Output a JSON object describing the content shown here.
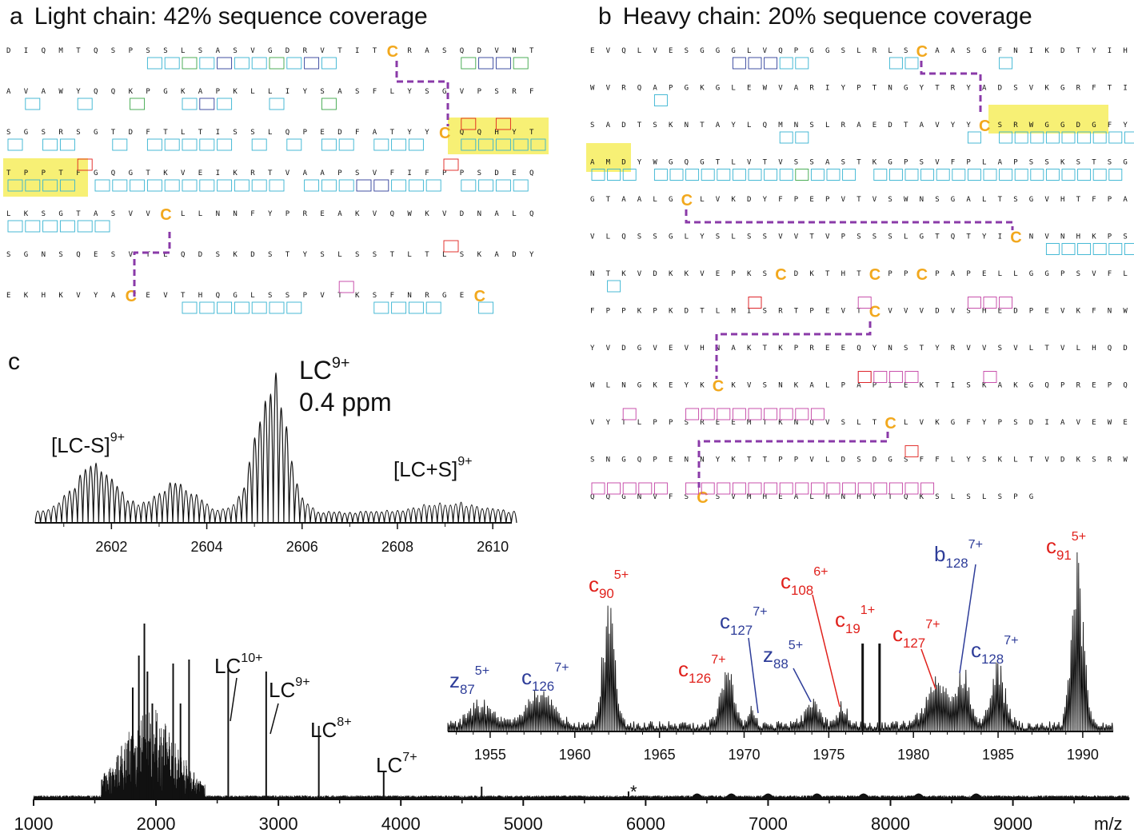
{
  "panel_a": {
    "letter": "a",
    "title": "Light chain: 42% sequence coverage",
    "rows": [
      "DIQMTQSPSSLSASVGDRVTITCRASQDVNT",
      "AVAWYQQKPGKAPKLLIYSASFLYSGVPSRF",
      "SGSRSGTDFTLTISSLQPEDFATYYCQQHYT",
      "TPPTFGQGTKVEIKRTVAAPSVFIFPPSDEQ",
      "LKSGTASVVCLLNNFYPREAKVQWKVDNALQ",
      "SGNSQESVTEQDSKDSTYSLSSTLTLSKADY",
      "EKHKVYACEVTHQGLSSPVTKSFNRGEC"
    ]
  },
  "panel_b": {
    "letter": "b",
    "title": "Heavy chain: 20% sequence coverage",
    "rows": [
      "EVQLVESGGGLVQPGGSLRLSCAASGFNIKDTYIH",
      "WVRQAPGKGLEWVARIYPTNGYTRYADSVKGRFTI",
      "SADTSKNTAYLQMNSLRAEDTAVYYCSRWGGDGFY",
      "AMDYWGQGTLVTVSSASTKGPSVFPLAPSSKSTSG",
      "GTAALGCLVKDYFPEPVTVSWNSGALTSGVHTFPA",
      "VLQSSGLYSLSSVVTVPSSSLGTQTYICNVNHKPS",
      "NTKVDKKVEPKSCDKTHTCPPCPAPELLGGPSVFL",
      "FPPKPKDTLMISRTPEVTCVVVDVSHEDPEVKFNW",
      "YVDGVEVHNAKTKPREEQYNSTYRVVSVLTVLHQD",
      "WLNGKEYKCKVSNKALPAPIEKTISKAKGQPREPQ",
      "VYTLPPSREEMTKNQVSLTCLVKGFYPSDIAVEWE",
      "SNGQPENNYKTTPPVLDSDGSFFLYSKLTVDKSRW",
      "QQGNVFSCSVMHEALHNHYTQKSLSLSPG"
    ]
  },
  "panel_c": {
    "letter": "c",
    "main_xaxis": {
      "unit": "m/z",
      "ticks": [
        "1000",
        "2000",
        "3000",
        "4000",
        "5000",
        "6000",
        "7000",
        "8000",
        "9000"
      ]
    },
    "inset_xaxis": {
      "ticks": [
        "2602",
        "2604",
        "2606",
        "2608",
        "2610"
      ]
    },
    "zoom_xaxis": {
      "ticks": [
        "1955",
        "1960",
        "1965",
        "1970",
        "1975",
        "1980",
        "1985",
        "1990"
      ]
    },
    "inset_labels": {
      "lc9": {
        "base": "LC",
        "sup": "9+"
      },
      "ppm": "0.4 ppm",
      "lc_minus_s": {
        "base": "[LC-S]",
        "sup": "9+"
      },
      "lc_plus_s": {
        "base": "[LC+S]",
        "sup": "9+"
      }
    },
    "main_labels": [
      {
        "base": "LC",
        "sup": "10+"
      },
      {
        "base": "LC",
        "sup": "9+"
      },
      {
        "base": "LC",
        "sup": "8+"
      },
      {
        "base": "LC",
        "sup": "7+"
      }
    ],
    "star": "*",
    "zoom_labels": [
      {
        "base": "z",
        "sub": "87",
        "sup": "5+",
        "color": "#2e3d99"
      },
      {
        "base": "c",
        "sub": "126",
        "sup": "7+",
        "color": "#2e3d99"
      },
      {
        "base": "c",
        "sub": "90",
        "sup": "5+",
        "color": "#e0211c"
      },
      {
        "base": "c",
        "sub": "126",
        "sup": "7+",
        "color": "#e0211c"
      },
      {
        "base": "c",
        "sub": "127",
        "sup": "7+",
        "color": "#2e3d99"
      },
      {
        "base": "z",
        "sub": "88",
        "sup": "5+",
        "color": "#2e3d99"
      },
      {
        "base": "c",
        "sub": "108",
        "sup": "6+",
        "color": "#e0211c"
      },
      {
        "base": "c",
        "sub": "19",
        "sup": "1+",
        "color": "#e0211c"
      },
      {
        "base": "c",
        "sub": "127",
        "sup": "7+",
        "color": "#e0211c"
      },
      {
        "base": "b",
        "sub": "128",
        "sup": "7+",
        "color": "#2e3d99"
      },
      {
        "base": "c",
        "sub": "128",
        "sup": "7+",
        "color": "#2e3d99"
      },
      {
        "base": "c",
        "sub": "91",
        "sup": "5+",
        "color": "#e0211c"
      }
    ]
  },
  "colors": {
    "cyan": "#35b3d1",
    "green": "#3aa646",
    "navy": "#2e3d99",
    "red": "#e0211c",
    "magenta": "#c23fa3",
    "yellow": "#f7f075",
    "cysteine": "#f2a81d",
    "disulfide": "#8a3aa8"
  }
}
